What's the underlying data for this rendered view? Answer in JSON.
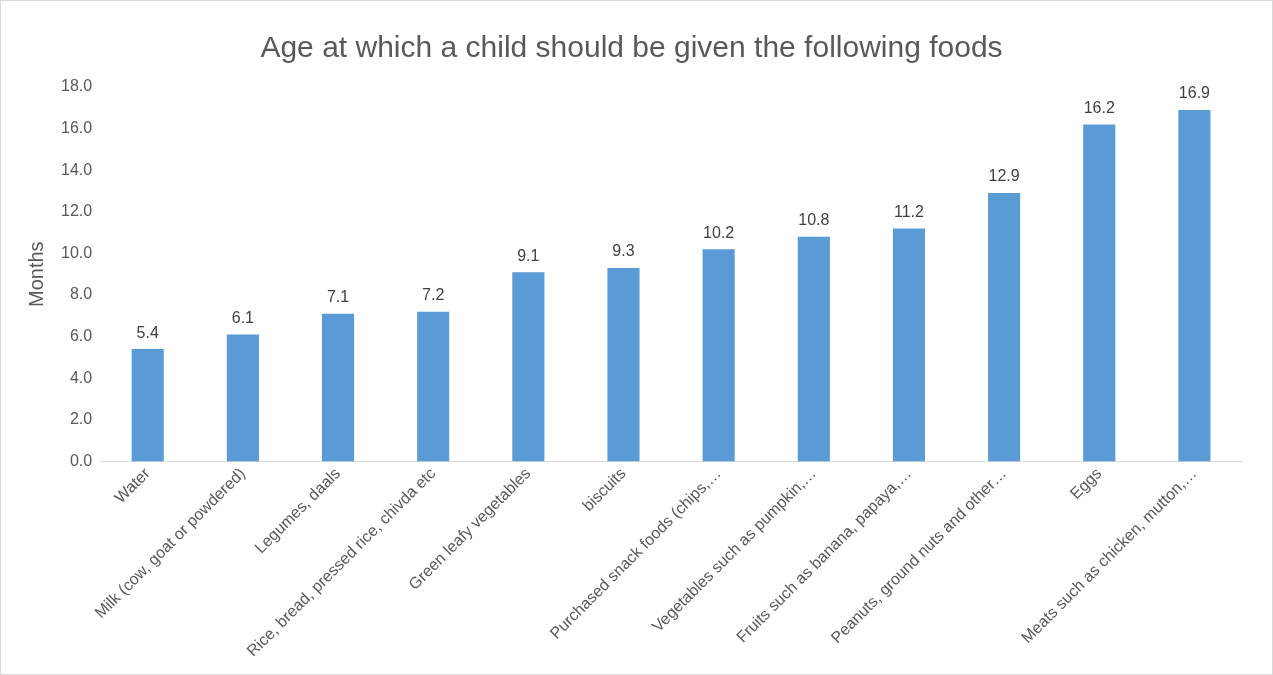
{
  "chart_data": {
    "type": "bar",
    "title": "Age at which a child should be given the following foods",
    "ylabel": "Months",
    "categories": [
      "Water",
      "Milk (cow, goat or powdered)",
      "Legumes, daals",
      "Rice, bread, pressed rice, chivda etc",
      "Green leafy vegetables",
      "biscuits",
      "Purchased snack foods (chips,…",
      "Vegetables such as pumpkin,…",
      "Fruits such as banana, papaya,…",
      "Peanuts, ground nuts and other…",
      "Eggs",
      "Meats such as chicken, mutton,…"
    ],
    "values": [
      5.4,
      6.1,
      7.1,
      7.2,
      9.1,
      9.3,
      10.2,
      10.8,
      11.2,
      12.9,
      16.2,
      16.9
    ],
    "color": "#5b9bd5",
    "ylim": [
      0,
      18
    ],
    "yticks": [
      {
        "value": 0,
        "label": "0.0"
      },
      {
        "value": 2,
        "label": "2.0"
      },
      {
        "value": 4,
        "label": "4.0"
      },
      {
        "value": 6,
        "label": "6.0"
      },
      {
        "value": 8,
        "label": "8.0"
      },
      {
        "value": 10,
        "label": "10.0"
      },
      {
        "value": 12,
        "label": "12.0"
      },
      {
        "value": 14,
        "label": "14.0"
      },
      {
        "value": 16,
        "label": "16.0"
      },
      {
        "value": 18,
        "label": "18.0"
      }
    ],
    "data_labels": true,
    "grid": false,
    "legend": false
  }
}
